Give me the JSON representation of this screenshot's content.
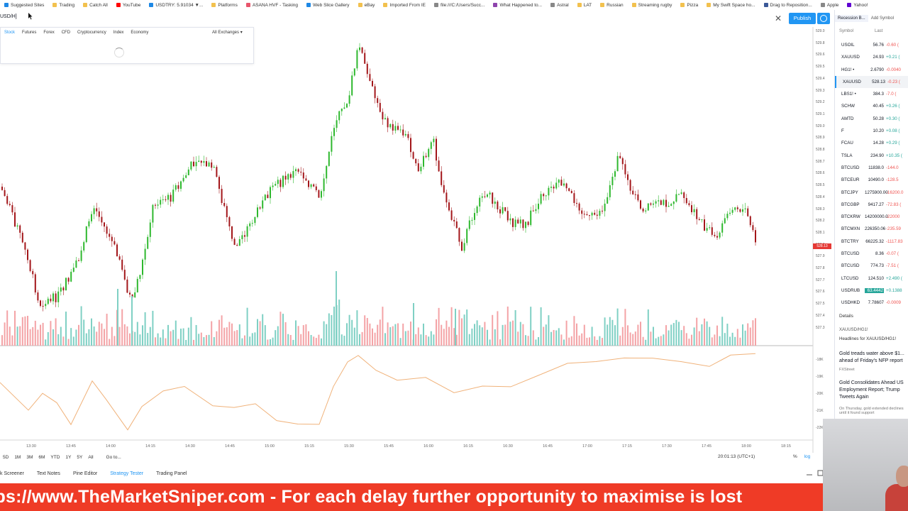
{
  "bookmarks": [
    {
      "label": "Suggested Sites",
      "color": "#1e88e5"
    },
    {
      "label": "Trading",
      "color": "#f2c14e"
    },
    {
      "label": "Catch All",
      "color": "#f2c14e"
    },
    {
      "label": "YouTube",
      "color": "#ff0000"
    },
    {
      "label": "USDTRY: 5.91034 ▼...",
      "color": "#1e88e5"
    },
    {
      "label": "Platforms",
      "color": "#f2c14e"
    },
    {
      "label": "ASANA HVF - Tasking",
      "color": "#e8566c"
    },
    {
      "label": "Web Slice Gallery",
      "color": "#1e88e5"
    },
    {
      "label": "eBay",
      "color": "#f2c14e"
    },
    {
      "label": "Imported From IE",
      "color": "#f2c14e"
    },
    {
      "label": "file:///C:/Users/Succ...",
      "color": "#888888"
    },
    {
      "label": "What Happened to...",
      "color": "#8e44ad"
    },
    {
      "label": "Astral",
      "color": "#888888"
    },
    {
      "label": "LAT",
      "color": "#f2c14e"
    },
    {
      "label": "Russian",
      "color": "#f2c14e"
    },
    {
      "label": "Streaming rugby",
      "color": "#f2c14e"
    },
    {
      "label": "Pizza",
      "color": "#f2c14e"
    },
    {
      "label": "My Swift Space ho...",
      "color": "#f2c14e"
    },
    {
      "label": "Drag to Reposition...",
      "color": "#3b5998"
    },
    {
      "label": "Apple",
      "color": "#888888"
    },
    {
      "label": "Yahoo!",
      "color": "#6001d2"
    }
  ],
  "toolbar": {
    "symbol": "USD/H]",
    "publish_label": "Publish"
  },
  "search": {
    "tabs": [
      "Stock",
      "Futures",
      "Forex",
      "CFD",
      "Cryptocurrency",
      "Index",
      "Economy"
    ],
    "exchange_label": "All Exchanges ▾"
  },
  "chart": {
    "price_axis": [
      "529.0",
      "529.8",
      "529.6",
      "529.5",
      "529.4",
      "529.3",
      "529.2",
      "529.1",
      "529.0",
      "528.9",
      "528.8",
      "528.7",
      "528.6",
      "528.5",
      "528.4",
      "528.3",
      "528.2",
      "528.1",
      "528.0",
      "527.9",
      "527.8",
      "527.7",
      "527.6",
      "527.5",
      "527.4",
      "527.3"
    ],
    "last_price_tag": "528.13",
    "osc_axis": [
      "-18K",
      "-19K",
      "-20K",
      "-21K",
      "-22K"
    ],
    "time_axis": [
      "13:30",
      "13:45",
      "14:00",
      "14:15",
      "14:30",
      "14:45",
      "15:00",
      "15:15",
      "15:30",
      "15:45",
      "16:00",
      "16:15",
      "16:30",
      "16:45",
      "17:00",
      "17:15",
      "17:30",
      "17:45",
      "18:00",
      "18:15"
    ],
    "up_color": "#26a69a",
    "down_color": "#ef5350",
    "candle_up_color": "#2eb82e",
    "candle_down_color": "#a3161a",
    "osc_color": "#f0b27a"
  },
  "range_bar": [
    "5D",
    "1M",
    "3M",
    "6M",
    "YTD",
    "1Y",
    "5Y",
    "All",
    "Go to..."
  ],
  "timezone": "20:01:13 (UTC+1)",
  "pct_label": "%",
  "log_label": "log",
  "panel_tabs": [
    "k Screener",
    "Text Notes",
    "Pine Editor",
    "Strategy Tester",
    "Trading Panel"
  ],
  "banner_text": "https://www.TheMarketSniper.com - For each delay further opportunity to maximise is lost",
  "watchlist": {
    "tab1": "Recession B...",
    "tab2": "Add Symbol",
    "col_symbol": "Symbol",
    "col_last": "Last",
    "rows": [
      {
        "sym": "USOIL",
        "last": "56.76",
        "chg": "-0.60 (",
        "dir": "dn"
      },
      {
        "sym": "XAUUSD",
        "last": "24.93",
        "chg": "+0.21 (",
        "dir": "up"
      },
      {
        "sym": "HG1! •",
        "last": "2.6790",
        "chg": "-0.0040",
        "dir": "dn"
      },
      {
        "sym": "XAUUSD",
        "last": "528.13",
        "chg": "-0.23 (",
        "dir": "dn",
        "sel": true
      },
      {
        "sym": "LBS1! •",
        "last": "384.3",
        "chg": "-7.0 (",
        "dir": "dn"
      },
      {
        "sym": "SCHW",
        "last": "40.45",
        "chg": "+0.26 (",
        "dir": "up"
      },
      {
        "sym": "AMTD",
        "last": "50.28",
        "chg": "+0.30 (",
        "dir": "up"
      },
      {
        "sym": "F",
        "last": "10.20",
        "chg": "+0.08 (",
        "dir": "up"
      },
      {
        "sym": "FCAU",
        "last": "14.28",
        "chg": "+0.29 (",
        "dir": "up"
      },
      {
        "sym": "TSLA",
        "last": "234.90",
        "chg": "+10.35 (",
        "dir": "up"
      },
      {
        "sym": "BTCUSD",
        "last": "11838.0",
        "chg": "-144.0",
        "dir": "dn"
      },
      {
        "sym": "BTCEUR",
        "last": "10490.0",
        "chg": "-128.5",
        "dir": "dn"
      },
      {
        "sym": "BTCJPY",
        "last": "1275900.00",
        "chg": "-16200.0",
        "dir": "dn"
      },
      {
        "sym": "BTCGBP",
        "last": "9417.27",
        "chg": "-72.83 (",
        "dir": "dn"
      },
      {
        "sym": "BTCKRW",
        "last": "14200000.0",
        "chg": "-22000",
        "dir": "dn"
      },
      {
        "sym": "BTCMXN",
        "last": "226350.06",
        "chg": "-235.59",
        "dir": "dn"
      },
      {
        "sym": "BTCTRY",
        "last": "66225.32",
        "chg": "-1117.83",
        "dir": "dn"
      },
      {
        "sym": "BTCUSD",
        "last": "8.36",
        "chg": "-0.07 (",
        "dir": "dn"
      },
      {
        "sym": "BTCUSD",
        "last": "774.73",
        "chg": "-7.51 (",
        "dir": "dn"
      },
      {
        "sym": "LTCUSD",
        "last": "124.510",
        "chg": "+2.490 (",
        "dir": "up"
      },
      {
        "sym": "USDRUB",
        "last": "63.4442",
        "chg": "+0.1388",
        "dir": "up",
        "hl": true
      },
      {
        "sym": "USDHKD",
        "last": "7.78607",
        "chg": "-0.0009",
        "dir": "dn"
      }
    ],
    "details_label": "Details",
    "sub_label": "XAUUSD/HG1!",
    "headlines_label": "Headlines for XAUUSD/HG1!",
    "news": [
      {
        "title": "Gold treads water above $1... ahead of Friday's NFP report",
        "src": "FXStreet"
      },
      {
        "title": "Gold Consolidates Ahead US Employment Report; Trump Tweets Again",
        "src": "On Thursday, gold extended declines until it found support"
      }
    ]
  }
}
